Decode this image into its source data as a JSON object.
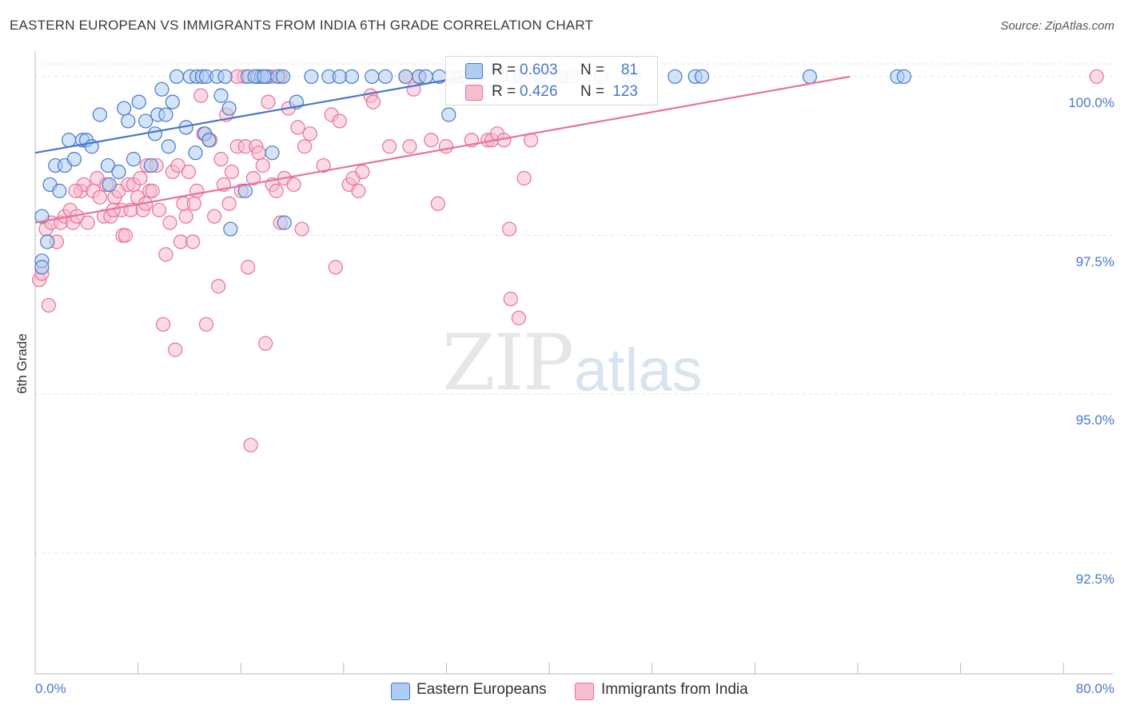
{
  "title": "EASTERN EUROPEAN VS IMMIGRANTS FROM INDIA 6TH GRADE CORRELATION CHART",
  "source": "Source: ZipAtlas.com",
  "watermark": {
    "zip": "ZIP",
    "atlas": "atlas"
  },
  "colors": {
    "blue": "#4a78c9",
    "pink": "#e8729a",
    "blue_fill": "#aecdf0",
    "pink_fill": "#f6bcd0",
    "grid": "#e3e3e3"
  },
  "legend": {
    "r_label": "R =",
    "n_label": "N =",
    "series": [
      {
        "name": "Eastern Europeans",
        "r": "0.603",
        "n": "81"
      },
      {
        "name": "Immigrants from India",
        "r": "0.426",
        "n": "123"
      }
    ]
  },
  "chart_data": {
    "type": "scatter",
    "title": "EASTERN EUROPEAN VS IMMIGRANTS FROM INDIA 6TH GRADE CORRELATION CHART",
    "xlabel": "",
    "ylabel": "6th Grade",
    "xlim": [
      0,
      80
    ],
    "ylim": [
      90.6,
      100.4
    ],
    "x_tick_labels": [
      "0.0%",
      "80.0%"
    ],
    "y_ticks": [
      92.5,
      95.0,
      97.5,
      100.0
    ],
    "y_tick_labels": [
      "92.5%",
      "95.0%",
      "97.5%",
      "100.0%"
    ],
    "series": [
      {
        "name": "Eastern Europeans",
        "r": 0.603,
        "n": 81,
        "trend": {
          "x": [
            0,
            32
          ],
          "y": [
            98.8,
            100.0
          ]
        },
        "points": [
          [
            0.5,
            97.8
          ],
          [
            0.5,
            97.1
          ],
          [
            0.5,
            97.0
          ],
          [
            0.9,
            97.4
          ],
          [
            1.1,
            98.3
          ],
          [
            1.5,
            98.6
          ],
          [
            1.8,
            98.2
          ],
          [
            2.2,
            98.6
          ],
          [
            2.5,
            99.0
          ],
          [
            2.9,
            98.7
          ],
          [
            3.5,
            99.0
          ],
          [
            3.8,
            99.0
          ],
          [
            4.2,
            98.9
          ],
          [
            4.8,
            99.4
          ],
          [
            5.5,
            98.3
          ],
          [
            5.4,
            98.6
          ],
          [
            6.2,
            98.5
          ],
          [
            6.6,
            99.5
          ],
          [
            6.9,
            99.3
          ],
          [
            7.3,
            98.7
          ],
          [
            7.7,
            99.6
          ],
          [
            8.2,
            99.3
          ],
          [
            8.6,
            98.6
          ],
          [
            8.9,
            99.1
          ],
          [
            9.1,
            99.4
          ],
          [
            9.4,
            99.8
          ],
          [
            9.7,
            99.4
          ],
          [
            9.9,
            98.9
          ],
          [
            10.2,
            99.6
          ],
          [
            11.2,
            99.2
          ],
          [
            11.9,
            98.8
          ],
          [
            12.6,
            99.1
          ],
          [
            12.9,
            99.0
          ],
          [
            13.8,
            99.7
          ],
          [
            14.4,
            99.5
          ],
          [
            14.5,
            97.6
          ],
          [
            15.6,
            98.2
          ],
          [
            17.6,
            98.8
          ],
          [
            18.5,
            97.7
          ],
          [
            19.4,
            99.6
          ],
          [
            10.5,
            100.0
          ],
          [
            11.5,
            100.0
          ],
          [
            12.0,
            100.0
          ],
          [
            12.4,
            100.0
          ],
          [
            12.7,
            100.0
          ],
          [
            13.5,
            100.0
          ],
          [
            14.1,
            100.0
          ],
          [
            15.8,
            100.0
          ],
          [
            16.5,
            100.0
          ],
          [
            16.8,
            100.0
          ],
          [
            17.2,
            100.0
          ],
          [
            18.0,
            100.0
          ],
          [
            18.4,
            100.0
          ],
          [
            20.5,
            100.0
          ],
          [
            21.8,
            100.0
          ],
          [
            23.5,
            100.0
          ],
          [
            25.0,
            100.0
          ],
          [
            26.0,
            100.0
          ],
          [
            27.5,
            100.0
          ],
          [
            28.5,
            100.0
          ],
          [
            29.0,
            100.0
          ],
          [
            30.0,
            100.0
          ],
          [
            31.5,
            100.0
          ],
          [
            32.8,
            100.0
          ],
          [
            34.5,
            100.0
          ],
          [
            35.5,
            100.0
          ],
          [
            36.0,
            100.0
          ],
          [
            37.5,
            100.0
          ],
          [
            39.0,
            100.0
          ],
          [
            42.0,
            100.0
          ],
          [
            44.5,
            100.0
          ],
          [
            47.5,
            100.0
          ],
          [
            49.0,
            100.0
          ],
          [
            49.5,
            100.0
          ],
          [
            57.5,
            100.0
          ],
          [
            64.0,
            100.0
          ],
          [
            64.5,
            100.0
          ],
          [
            30.7,
            99.4
          ],
          [
            16.3,
            100.0
          ],
          [
            17.0,
            100.0
          ],
          [
            22.6,
            100.0
          ]
        ]
      },
      {
        "name": "Immigrants from India",
        "r": 0.426,
        "n": 123,
        "trend": {
          "x": [
            0,
            60.5
          ],
          "y": [
            97.7,
            100.0
          ]
        },
        "points": [
          [
            0.3,
            96.8
          ],
          [
            0.5,
            96.9
          ],
          [
            0.8,
            97.6
          ],
          [
            1.0,
            96.4
          ],
          [
            1.2,
            97.7
          ],
          [
            1.6,
            97.4
          ],
          [
            1.9,
            97.7
          ],
          [
            2.2,
            97.8
          ],
          [
            2.6,
            97.9
          ],
          [
            2.8,
            97.7
          ],
          [
            3.1,
            97.8
          ],
          [
            3.4,
            98.2
          ],
          [
            3.6,
            98.3
          ],
          [
            3.9,
            97.7
          ],
          [
            4.3,
            98.2
          ],
          [
            4.6,
            98.4
          ],
          [
            4.8,
            98.1
          ],
          [
            5.1,
            97.8
          ],
          [
            5.3,
            98.3
          ],
          [
            5.6,
            97.8
          ],
          [
            5.9,
            98.1
          ],
          [
            6.2,
            98.2
          ],
          [
            6.4,
            97.9
          ],
          [
            6.5,
            97.5
          ],
          [
            6.7,
            97.5
          ],
          [
            6.9,
            98.3
          ],
          [
            7.1,
            97.9
          ],
          [
            7.3,
            98.3
          ],
          [
            7.6,
            98.1
          ],
          [
            7.8,
            98.4
          ],
          [
            8.0,
            97.9
          ],
          [
            8.2,
            98.0
          ],
          [
            8.3,
            98.6
          ],
          [
            8.5,
            98.2
          ],
          [
            8.7,
            98.2
          ],
          [
            9.0,
            98.6
          ],
          [
            9.2,
            97.9
          ],
          [
            9.5,
            96.1
          ],
          [
            9.7,
            97.2
          ],
          [
            10.0,
            97.7
          ],
          [
            10.2,
            98.5
          ],
          [
            10.4,
            95.7
          ],
          [
            10.6,
            98.6
          ],
          [
            10.8,
            97.4
          ],
          [
            11.0,
            98.0
          ],
          [
            11.2,
            97.8
          ],
          [
            11.4,
            98.5
          ],
          [
            11.7,
            97.4
          ],
          [
            12.0,
            98.2
          ],
          [
            12.3,
            99.7
          ],
          [
            12.5,
            99.1
          ],
          [
            12.7,
            96.1
          ],
          [
            13.0,
            99.0
          ],
          [
            13.3,
            97.8
          ],
          [
            13.6,
            96.7
          ],
          [
            13.8,
            98.7
          ],
          [
            14.0,
            98.3
          ],
          [
            14.2,
            99.4
          ],
          [
            14.4,
            98.0
          ],
          [
            14.6,
            98.5
          ],
          [
            15.0,
            98.9
          ],
          [
            15.3,
            98.2
          ],
          [
            15.6,
            98.9
          ],
          [
            15.8,
            97.0
          ],
          [
            16.0,
            94.2
          ],
          [
            16.2,
            98.4
          ],
          [
            16.4,
            98.9
          ],
          [
            16.6,
            98.8
          ],
          [
            16.9,
            98.6
          ],
          [
            17.1,
            95.8
          ],
          [
            17.3,
            99.6
          ],
          [
            17.6,
            98.3
          ],
          [
            17.9,
            98.2
          ],
          [
            18.2,
            97.7
          ],
          [
            18.5,
            98.4
          ],
          [
            18.8,
            99.5
          ],
          [
            19.2,
            98.3
          ],
          [
            19.5,
            99.2
          ],
          [
            19.8,
            97.6
          ],
          [
            20.0,
            98.9
          ],
          [
            20.4,
            99.1
          ],
          [
            21.4,
            98.6
          ],
          [
            22.0,
            99.4
          ],
          [
            22.3,
            97.0
          ],
          [
            22.6,
            99.3
          ],
          [
            23.3,
            98.3
          ],
          [
            23.6,
            98.4
          ],
          [
            24.0,
            98.2
          ],
          [
            24.3,
            98.5
          ],
          [
            24.9,
            99.7
          ],
          [
            25.1,
            99.6
          ],
          [
            26.3,
            98.9
          ],
          [
            27.8,
            98.9
          ],
          [
            28.1,
            99.8
          ],
          [
            29.4,
            99.0
          ],
          [
            29.9,
            98.0
          ],
          [
            30.5,
            98.9
          ],
          [
            31.1,
            100.0
          ],
          [
            32.4,
            99.0
          ],
          [
            33.6,
            99.0
          ],
          [
            33.9,
            99.0
          ],
          [
            34.3,
            99.1
          ],
          [
            34.8,
            99.0
          ],
          [
            35.2,
            97.6
          ],
          [
            35.3,
            96.5
          ],
          [
            35.9,
            96.2
          ],
          [
            36.3,
            98.4
          ],
          [
            36.8,
            99.0
          ],
          [
            39.5,
            100.0
          ],
          [
            40.0,
            100.0
          ],
          [
            27.5,
            100.0
          ],
          [
            28.5,
            100.0
          ],
          [
            18.2,
            100.0
          ],
          [
            17.5,
            100.0
          ],
          [
            16.5,
            100.0
          ],
          [
            15.5,
            100.0
          ],
          [
            15.0,
            100.0
          ],
          [
            31.0,
            100.0
          ],
          [
            78.8,
            100.0
          ],
          [
            44.0,
            100.0
          ],
          [
            11.8,
            98.0
          ],
          [
            5.8,
            97.9
          ],
          [
            3.0,
            98.2
          ]
        ]
      }
    ]
  }
}
